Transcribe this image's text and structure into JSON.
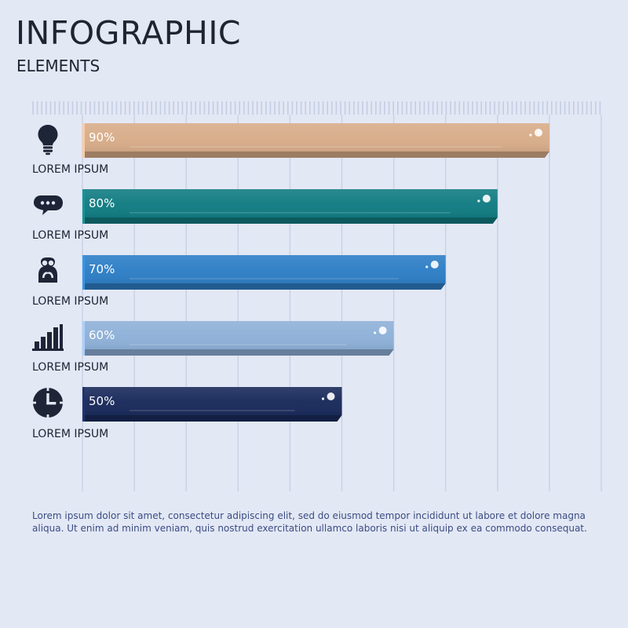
{
  "header": {
    "title": "INFOGRAPHIC",
    "subtitle": "ELEMENTS"
  },
  "chart_data": {
    "type": "bar",
    "orientation": "horizontal",
    "categories": [
      "LOREM IPSUM",
      "LOREM IPSUM",
      "LOREM IPSUM",
      "LOREM IPSUM",
      "LOREM IPSUM"
    ],
    "values": [
      90,
      80,
      70,
      60,
      50
    ],
    "value_labels": [
      "90%",
      "80%",
      "70%",
      "60%",
      "50%"
    ],
    "xlim": [
      0,
      100
    ],
    "grid": true,
    "colors": [
      "#d8ad8a",
      "#127d83",
      "#2f7fc6",
      "#8fb1d8",
      "#1a2b5c"
    ],
    "icons": [
      "lightbulb-icon",
      "chat-bubble-icon",
      "users-icon",
      "bar-chart-icon",
      "clock-icon"
    ]
  },
  "footer": {
    "text": "Lorem ipsum dolor sit amet, consectetur adipiscing elit, sed do eiusmod tempor incididunt ut labore et dolore magna aliqua. Ut enim ad minim veniam, quis nostrud exercitation ullamco laboris nisi ut aliquip ex ea commodo consequat."
  }
}
